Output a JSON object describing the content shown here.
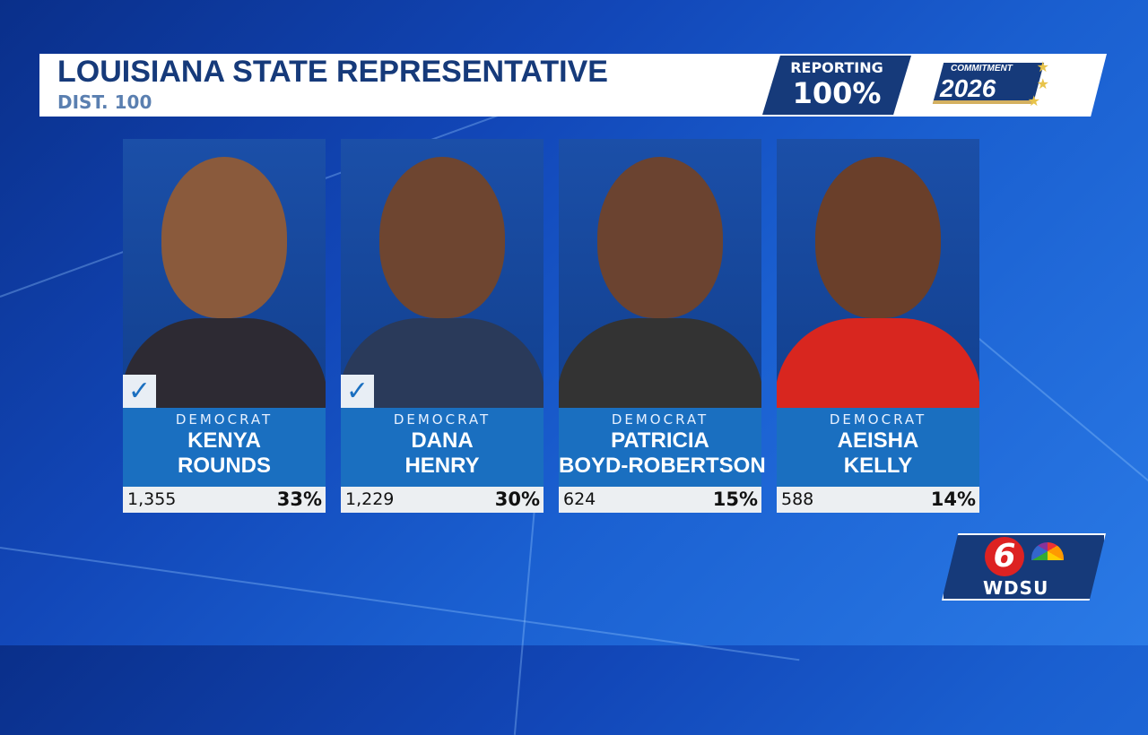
{
  "header": {
    "title": "LOUISIANA STATE REPRESENTATIVE",
    "subtitle": "DIST. 100",
    "reporting_label": "REPORTING",
    "reporting_value": "100%"
  },
  "logo": {
    "line1": "COMMITMENT",
    "line2": "2026"
  },
  "station": {
    "number": "6",
    "name": "WDSU"
  },
  "colors": {
    "navy": "#163a7a",
    "party_blue": "#1a6fc0",
    "check": "#1a6fc0"
  },
  "candidates": [
    {
      "party": "DEMOCRAT",
      "first": "KENYA",
      "last": "ROUNDS",
      "votes": "1,355",
      "pct": "33%",
      "winner": true,
      "skin": "#8a5a3c",
      "clothes": "#2d2a33"
    },
    {
      "party": "DEMOCRAT",
      "first": "DANA",
      "last": "HENRY",
      "votes": "1,229",
      "pct": "30%",
      "winner": true,
      "skin": "#6e4530",
      "clothes": "#2a3a5a"
    },
    {
      "party": "DEMOCRAT",
      "first": "PATRICIA",
      "last": "BOYD-ROBERTSON",
      "votes": "624",
      "pct": "15%",
      "winner": false,
      "skin": "#6b4330",
      "clothes": "#333"
    },
    {
      "party": "DEMOCRAT",
      "first": "AEISHA",
      "last": "KELLY",
      "votes": "588",
      "pct": "14%",
      "winner": false,
      "skin": "#6a3f2a",
      "clothes": "#d8261f"
    }
  ]
}
